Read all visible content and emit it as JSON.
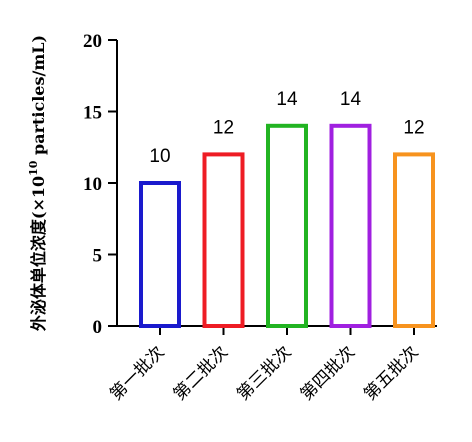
{
  "chart_data": {
    "type": "bar",
    "categories": [
      "第一批次",
      "第二批次",
      "第三批次",
      "第四批次",
      "第五批次"
    ],
    "values": [
      10,
      12,
      14,
      14,
      12
    ],
    "data_labels": [
      "10",
      "12",
      "14",
      "14",
      "12"
    ],
    "colors": [
      "#1a1acd",
      "#ee1c24",
      "#22b422",
      "#a020e0",
      "#f7931e"
    ],
    "title": "",
    "xlabel": "",
    "ylabel_parts": {
      "prefix": "外泌体单位浓度(×10",
      "superscript": "10",
      "suffix": " particles/mL)"
    },
    "ylim": [
      0,
      20
    ],
    "yticks": [
      0,
      5,
      10,
      15,
      20
    ],
    "ytick_labels": [
      "0",
      "5",
      "10",
      "15",
      "20"
    ],
    "bar_fill": "none",
    "grid": false,
    "legend": "none"
  }
}
